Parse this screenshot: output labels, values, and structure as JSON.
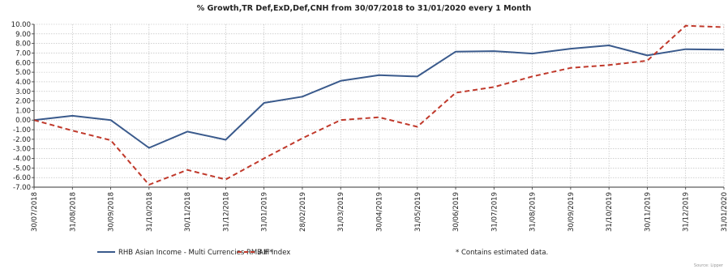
{
  "chart_data": {
    "type": "line",
    "title": "% Growth,TR Def,ExD,Def,CNH from 30/07/2018 to 31/01/2020 every 1 Month",
    "x": [
      "30/07/2018",
      "31/08/2018",
      "30/09/2018",
      "31/10/2018",
      "30/11/2018",
      "31/12/2018",
      "31/01/2019",
      "28/02/2019",
      "31/03/2019",
      "30/04/2019",
      "31/05/2019",
      "30/06/2019",
      "31/07/2019",
      "31/08/2019",
      "30/09/2019",
      "31/10/2019",
      "30/11/2019",
      "31/12/2019",
      "31/01/2020"
    ],
    "y_ticks": [
      "10.00",
      "9.00",
      "8.00",
      "7.00",
      "6.00",
      "5.00",
      "4.00",
      "3.00",
      "2.00",
      "1.00",
      "0.00",
      "-1.00",
      "-2.00",
      "-3.00",
      "-4.00",
      "-5.00",
      "-6.00",
      "-7.00"
    ],
    "ylim": [
      -7,
      10
    ],
    "grid": true,
    "legend_position": "bottom",
    "series": [
      {
        "name": "RHB Asian Income - Multi Currencies RMB H*",
        "color": "#3a5a8c",
        "style": "solid",
        "values": [
          0.0,
          0.45,
          0.0,
          -2.9,
          -1.2,
          -2.05,
          1.8,
          2.45,
          4.1,
          4.7,
          4.55,
          7.15,
          7.2,
          6.95,
          7.45,
          7.8,
          6.75,
          7.4,
          7.35
        ]
      },
      {
        "name": "AIF Index",
        "color": "#c0392b",
        "style": "dashed",
        "values": [
          0.0,
          -1.1,
          -2.1,
          -6.75,
          -5.2,
          -6.2,
          -4.0,
          -1.9,
          0.0,
          0.3,
          -0.7,
          2.85,
          3.45,
          4.55,
          5.45,
          5.75,
          6.2,
          9.85,
          9.7
        ]
      }
    ],
    "note": "*  Contains estimated data.",
    "source": "Source: Lipper"
  }
}
